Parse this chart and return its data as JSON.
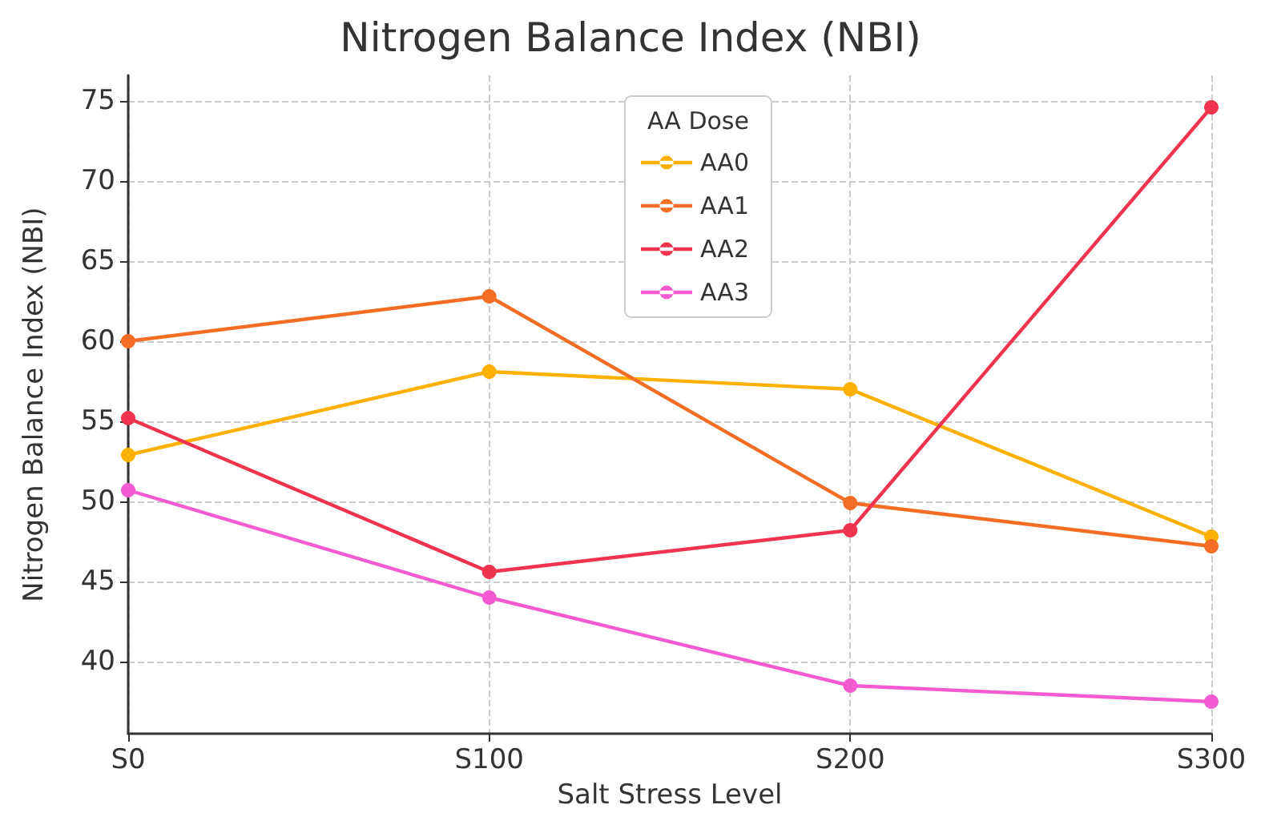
{
  "chart_data": {
    "type": "line",
    "title": "Nitrogen Balance Index (NBI)",
    "xlabel": "Salt Stress Level",
    "ylabel": "Nitrogen Balance Index (NBI)",
    "legend_title": "AA Dose",
    "categories": [
      "S0",
      "S100",
      "S200",
      "S300"
    ],
    "series": [
      {
        "name": "AA0",
        "color": "#ffb000",
        "values": [
          52.9,
          58.1,
          57.0,
          47.8
        ]
      },
      {
        "name": "AA1",
        "color": "#f46d25",
        "values": [
          60.0,
          62.8,
          49.9,
          47.2
        ]
      },
      {
        "name": "AA2",
        "color": "#f0344f",
        "values": [
          55.2,
          45.6,
          48.2,
          74.6
        ]
      },
      {
        "name": "AA3",
        "color": "#f55bd0",
        "values": [
          50.7,
          44.0,
          38.5,
          37.5
        ]
      }
    ],
    "ylim": [
      35.5,
      76.6
    ],
    "yticks": [
      40,
      45,
      50,
      55,
      60,
      65,
      70,
      75
    ],
    "grid": true,
    "legend": "top",
    "marker": "circle",
    "line_style": "solid"
  }
}
